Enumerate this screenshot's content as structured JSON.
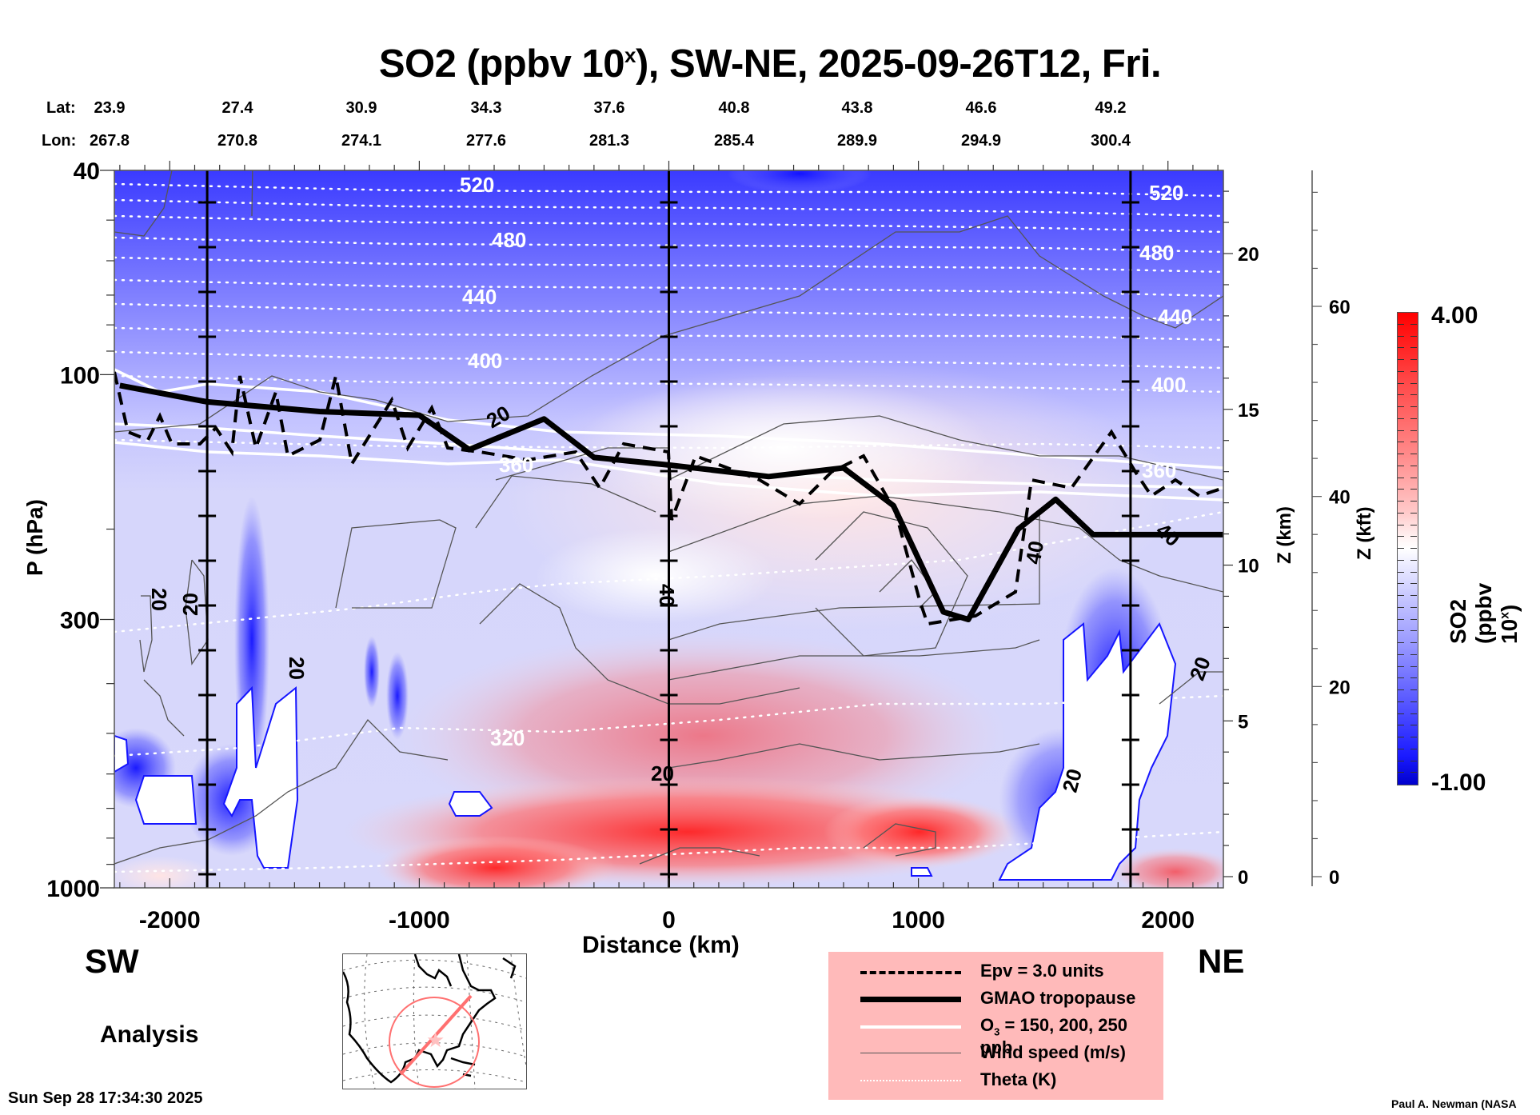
{
  "title": {
    "prefix": "SO2 (ppbv 10",
    "superscript": "x",
    "suffix": "), SW-NE, 2025-09-26T12, Fri."
  },
  "coords": {
    "lat_label": "Lat:",
    "lon_label": "Lon:",
    "lat": [
      "23.9",
      "27.4",
      "30.9",
      "34.3",
      "37.6",
      "40.8",
      "43.8",
      "46.6",
      "49.2"
    ],
    "lon": [
      "267.8",
      "270.8",
      "274.1",
      "277.6",
      "281.3",
      "285.4",
      "289.9",
      "294.9",
      "300.4"
    ]
  },
  "chart_data": {
    "type": "heatmap",
    "title": "SO2 (ppbv 10^x), SW-NE, 2025-09-26T12, Fri.",
    "xlabel": "Distance (km)",
    "ylabel": "P (hPa)",
    "y2label": "Z (km)",
    "y3label": "Z (kft)",
    "colorbar_label": "SO2 (ppbv 10^x)",
    "xlim": [
      -2222,
      2222
    ],
    "ylim_hPa": [
      1000,
      40
    ],
    "y_scale": "log",
    "x_ticks": [
      -2000,
      -1000,
      0,
      1000,
      2000
    ],
    "x_tick_labels": [
      "-2000",
      "-1000",
      "0",
      "1000",
      "2000"
    ],
    "y_ticks": [
      40,
      100,
      300,
      1000
    ],
    "y_tick_labels": [
      "40",
      "100",
      "300",
      "1000"
    ],
    "z_km_ticks": [
      0,
      5,
      10,
      15,
      20
    ],
    "z_km_tick_labels": [
      "0",
      "5",
      "10",
      "15",
      "20"
    ],
    "z_kft_ticks": [
      0,
      20,
      40,
      60
    ],
    "z_kft_tick_labels": [
      "0",
      "20",
      "40",
      "60"
    ],
    "colorbar_range": [
      -1.0,
      4.0
    ],
    "colorbar_tick_labels": [
      "4.00",
      "-1.00"
    ],
    "colormap": "blue-white-red",
    "vertical_markers_km": [
      -1850,
      0,
      1850
    ],
    "theta_contour_labels": [
      "520",
      "480",
      "440",
      "400",
      "360",
      "320"
    ],
    "wind_contour_labels": [
      "20",
      "20",
      "20",
      "20",
      "40",
      "40",
      "40",
      "20",
      "20",
      "20"
    ],
    "tropopause_hPa_approx": [
      {
        "x": -2200,
        "p": 105
      },
      {
        "x": -1850,
        "p": 113
      },
      {
        "x": -1400,
        "p": 118
      },
      {
        "x": -1000,
        "p": 120
      },
      {
        "x": -800,
        "p": 140
      },
      {
        "x": -500,
        "p": 122
      },
      {
        "x": -300,
        "p": 145
      },
      {
        "x": 0,
        "p": 150
      },
      {
        "x": 400,
        "p": 158
      },
      {
        "x": 700,
        "p": 152
      },
      {
        "x": 900,
        "p": 180
      },
      {
        "x": 1100,
        "p": 290
      },
      {
        "x": 1200,
        "p": 300
      },
      {
        "x": 1400,
        "p": 200
      },
      {
        "x": 1550,
        "p": 175
      },
      {
        "x": 1700,
        "p": 205
      },
      {
        "x": 2222,
        "p": 205
      }
    ],
    "legend": [
      {
        "label": "Epv = 3.0 units",
        "style": "dashed-thick"
      },
      {
        "label": "GMAO tropopause",
        "style": "solid-thick"
      },
      {
        "label": "O3 = 150, 200, 250 ppb",
        "style": "white-solid"
      },
      {
        "label": "Wind speed (m/s)",
        "style": "thin-gray"
      },
      {
        "label": "Theta (K)",
        "style": "white-dotted"
      }
    ]
  },
  "axes": {
    "x_label": "Distance (km)",
    "y_label": "P (hPa)",
    "z_km_label": "Z (km)",
    "z_kft_label": "Z (kft)",
    "colorbar_label_prefix": "SO2 (ppbv 10",
    "colorbar_label_sup": "x",
    "colorbar_label_suffix": ")",
    "colorbar_max": "4.00",
    "colorbar_min": "-1.00"
  },
  "direction": {
    "left": "SW",
    "right": "NE"
  },
  "legend": {
    "epv": "Epv = 3.0 units",
    "tropopause": "GMAO tropopause",
    "o3_prefix": "O",
    "o3_sub": "3",
    "o3_suffix": " = 150, 200, 250 ppb",
    "wind": "Wind speed (m/s)",
    "theta": "Theta (K)"
  },
  "footer": {
    "mode": "Analysis",
    "timestamp": "Sun Sep 28 17:34:30 2025",
    "credit": "Paul A. Newman (NASA"
  }
}
